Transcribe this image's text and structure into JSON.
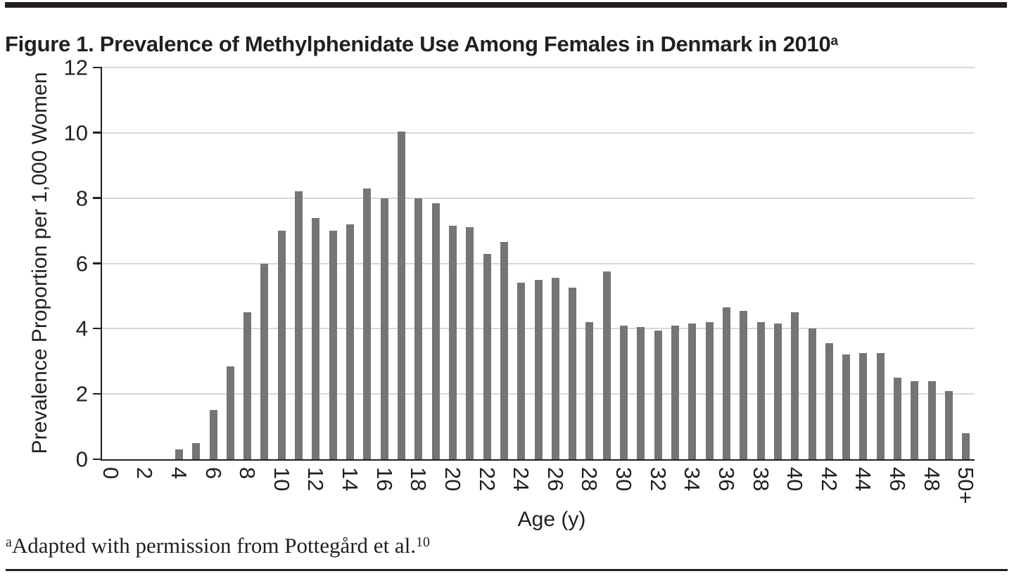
{
  "page": {
    "title": {
      "text": "Figure 1. Prevalence of Methylphenidate Use Among Females in Denmark in 2010",
      "superscript": "a"
    },
    "footnote": {
      "superscript": "a",
      "text": "Adapted with permission from Pottegård et al.",
      "ref_superscript": "10"
    }
  },
  "chart_data": {
    "type": "bar",
    "title": "Figure 1. Prevalence of Methylphenidate Use Among Females in Denmark in 2010 (a)",
    "xlabel": "Age (y)",
    "ylabel": "Prevalence Proportion per 1,000 Women",
    "ylim": [
      0,
      12
    ],
    "yticks": [
      0,
      2,
      4,
      6,
      8,
      10,
      12
    ],
    "grid": true,
    "legend": "none",
    "bar_color": "#757575",
    "gridline_color": "#d8d8d8",
    "axis_color": "#231f20",
    "xtick_label_rotation_deg": 90,
    "xtick_labeled_every": 2,
    "categories": [
      "0",
      "1",
      "2",
      "3",
      "4",
      "5",
      "6",
      "7",
      "8",
      "9",
      "10",
      "11",
      "12",
      "13",
      "14",
      "15",
      "16",
      "17",
      "18",
      "19",
      "20",
      "21",
      "22",
      "23",
      "24",
      "25",
      "26",
      "27",
      "28",
      "29",
      "30",
      "31",
      "32",
      "33",
      "34",
      "35",
      "36",
      "37",
      "38",
      "39",
      "40",
      "41",
      "42",
      "43",
      "44",
      "45",
      "46",
      "47",
      "48",
      "49",
      "50+"
    ],
    "values": [
      0,
      0,
      0,
      0,
      0.3,
      0.5,
      1.5,
      2.85,
      4.5,
      6.0,
      7.0,
      8.2,
      7.4,
      7.0,
      7.2,
      8.3,
      8.0,
      10.05,
      8.0,
      7.85,
      7.15,
      7.1,
      6.3,
      6.65,
      5.4,
      5.5,
      5.55,
      5.25,
      4.2,
      5.75,
      4.1,
      4.05,
      3.95,
      4.1,
      4.15,
      4.2,
      4.65,
      4.55,
      4.2,
      4.15,
      4.5,
      4.0,
      3.55,
      3.2,
      3.25,
      3.25,
      2.5,
      2.4,
      2.4,
      2.1,
      0.8
    ]
  }
}
